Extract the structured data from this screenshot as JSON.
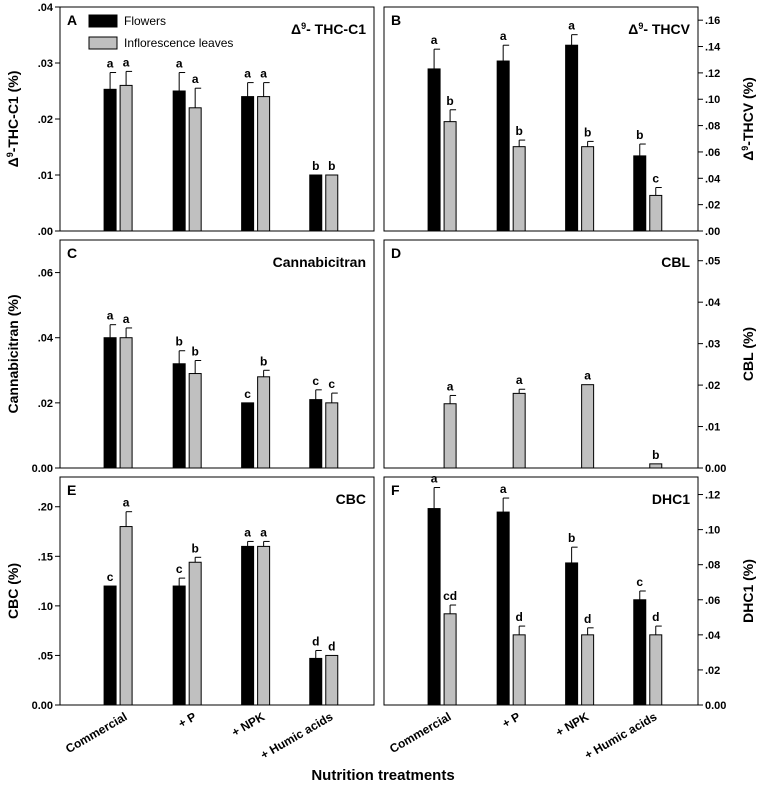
{
  "figure": {
    "xlabel": "Nutrition treatments",
    "categories": [
      "Commercial",
      "+ P",
      "+ NPK",
      "+ Humic acids"
    ],
    "legend": [
      "Flowers",
      "Inflorescence leaves"
    ],
    "colors": {
      "flowers": "#000000",
      "leaves": "#c0c0c0"
    }
  },
  "chart_data": [
    {
      "type": "bar",
      "panel": "A",
      "title": "Δ9- THC-C1",
      "ylabel": "Δ9-THC-C1 (%)",
      "ylim": [
        0,
        0.04
      ],
      "yticks": [
        ".00",
        ".01",
        ".02",
        ".03",
        ".04"
      ],
      "axis_side": "left",
      "categories": [
        "Commercial",
        "+ P",
        "+ NPK",
        "+ Humic acids"
      ],
      "series": [
        {
          "name": "Flowers",
          "values": [
            0.0253,
            0.025,
            0.024,
            0.01
          ],
          "errors": [
            0.003,
            0.0033,
            0.0025,
            0
          ],
          "labels": [
            "a",
            "a",
            "a",
            "b"
          ]
        },
        {
          "name": "Inflorescence leaves",
          "values": [
            0.026,
            0.022,
            0.024,
            0.01
          ],
          "errors": [
            0.0025,
            0.0035,
            0.0025,
            0
          ],
          "labels": [
            "a",
            "a",
            "a",
            "b"
          ]
        }
      ]
    },
    {
      "type": "bar",
      "panel": "B",
      "title": "Δ9- THCV",
      "ylabel": "Δ9-THCV (%)",
      "ylim": [
        0,
        0.17
      ],
      "yticks": [
        ".00",
        ".02",
        ".04",
        ".06",
        ".08",
        ".10",
        ".12",
        ".14",
        ".16"
      ],
      "axis_side": "right",
      "categories": [
        "Commercial",
        "+ P",
        "+ NPK",
        "+ Humic acids"
      ],
      "series": [
        {
          "name": "Flowers",
          "values": [
            0.123,
            0.129,
            0.141,
            0.057
          ],
          "errors": [
            0.015,
            0.012,
            0.008,
            0.009
          ],
          "labels": [
            "a",
            "a",
            "a",
            "b"
          ]
        },
        {
          "name": "Inflorescence leaves",
          "values": [
            0.083,
            0.064,
            0.064,
            0.027
          ],
          "errors": [
            0.009,
            0.005,
            0.004,
            0.006
          ],
          "labels": [
            "b",
            "b",
            "b",
            "c"
          ]
        }
      ]
    },
    {
      "type": "bar",
      "panel": "C",
      "title": "Cannabicitran",
      "ylabel": "Cannabicitran (%)",
      "ylim": [
        0,
        0.07
      ],
      "yticks": [
        "0.00",
        ".02",
        ".04",
        ".06"
      ],
      "axis_side": "left",
      "categories": [
        "Commercial",
        "+ P",
        "+ NPK",
        "+ Humic acids"
      ],
      "series": [
        {
          "name": "Flowers",
          "values": [
            0.04,
            0.032,
            0.02,
            0.021
          ],
          "errors": [
            0.004,
            0.004,
            0,
            0.003
          ],
          "labels": [
            "a",
            "b",
            "c",
            "c"
          ]
        },
        {
          "name": "Inflorescence leaves",
          "values": [
            0.04,
            0.029,
            0.028,
            0.02
          ],
          "errors": [
            0.003,
            0.004,
            0.002,
            0.003
          ],
          "labels": [
            "a",
            "b",
            "b",
            "c"
          ]
        }
      ]
    },
    {
      "type": "bar",
      "panel": "D",
      "title": "CBL",
      "ylabel": "CBL (%)",
      "ylim": [
        0,
        0.055
      ],
      "yticks": [
        "0.00",
        ".01",
        ".02",
        ".03",
        ".04",
        ".05"
      ],
      "axis_side": "right",
      "categories": [
        "Commercial",
        "+ P",
        "+ NPK",
        "+ Humic acids"
      ],
      "series": [
        {
          "name": "Flowers",
          "values": [
            0,
            0,
            0,
            0
          ],
          "errors": [
            0,
            0,
            0,
            0
          ],
          "labels": [
            "",
            "",
            "",
            ""
          ]
        },
        {
          "name": "Inflorescence leaves",
          "values": [
            0.0155,
            0.018,
            0.0201,
            0.001
          ],
          "errors": [
            0.002,
            0.001,
            0,
            0
          ],
          "labels": [
            "a",
            "a",
            "a",
            "b"
          ]
        }
      ]
    },
    {
      "type": "bar",
      "panel": "E",
      "title": "CBC",
      "ylabel": "CBC (%)",
      "ylim": [
        0,
        0.23
      ],
      "yticks": [
        "0.00",
        ".05",
        ".10",
        ".15",
        ".20"
      ],
      "axis_side": "left",
      "categories": [
        "Commercial",
        "+ P",
        "+ NPK",
        "+ Humic acids"
      ],
      "series": [
        {
          "name": "Flowers",
          "values": [
            0.12,
            0.12,
            0.16,
            0.047
          ],
          "errors": [
            0,
            0.008,
            0.005,
            0.008
          ],
          "labels": [
            "c",
            "c",
            "a",
            "d"
          ]
        },
        {
          "name": "Inflorescence leaves",
          "values": [
            0.18,
            0.144,
            0.16,
            0.05
          ],
          "errors": [
            0.015,
            0.005,
            0.005,
            0
          ],
          "labels": [
            "a",
            "b",
            "a",
            "d"
          ]
        }
      ]
    },
    {
      "type": "bar",
      "panel": "F",
      "title": "DHC1",
      "ylabel": "DHC1 (%)",
      "ylim": [
        0,
        0.13
      ],
      "yticks": [
        "0.00",
        ".02",
        ".04",
        ".06",
        ".08",
        ".10",
        ".12"
      ],
      "axis_side": "right",
      "categories": [
        "Commercial",
        "+ P",
        "+ NPK",
        "+ Humic acids"
      ],
      "series": [
        {
          "name": "Flowers",
          "values": [
            0.112,
            0.11,
            0.081,
            0.06
          ],
          "errors": [
            0.012,
            0.008,
            0.009,
            0.005
          ],
          "labels": [
            "a",
            "a",
            "b",
            "c"
          ]
        },
        {
          "name": "Inflorescence leaves",
          "values": [
            0.052,
            0.04,
            0.04,
            0.04
          ],
          "errors": [
            0.005,
            0.005,
            0.004,
            0.005
          ],
          "labels": [
            "cd",
            "d",
            "d",
            "d"
          ]
        }
      ]
    }
  ]
}
